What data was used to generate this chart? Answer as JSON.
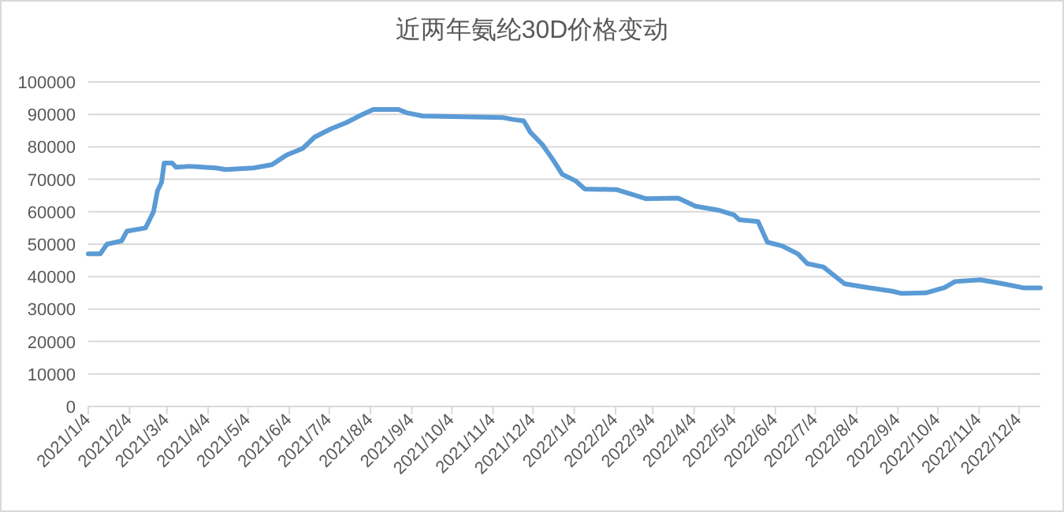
{
  "chart_data": {
    "type": "line",
    "title": "近两年氨纶30D价格变动",
    "x": [
      "2021-01-04",
      "2021-01-13",
      "2021-01-18",
      "2021-01-29",
      "2021-02-02",
      "2021-02-16",
      "2021-02-22",
      "2021-02-25",
      "2021-02-28",
      "2021-03-02",
      "2021-03-08",
      "2021-03-11",
      "2021-03-21",
      "2021-04-10",
      "2021-04-17",
      "2021-05-08",
      "2021-05-22",
      "2021-06-02",
      "2021-06-14",
      "2021-06-23",
      "2021-07-05",
      "2021-07-17",
      "2021-07-29",
      "2021-08-06",
      "2021-08-25",
      "2021-08-31",
      "2021-09-12",
      "2021-11-12",
      "2021-11-18",
      "2021-11-27",
      "2021-12-02",
      "2021-12-11",
      "2021-12-19",
      "2021-12-26",
      "2022-01-05",
      "2022-01-12",
      "2022-02-05",
      "2022-02-19",
      "2022-02-27",
      "2022-03-23",
      "2022-04-05",
      "2022-04-22",
      "2022-05-04",
      "2022-05-08",
      "2022-05-22",
      "2022-05-29",
      "2022-06-09",
      "2022-06-21",
      "2022-06-28",
      "2022-07-10",
      "2022-07-26",
      "2022-08-11",
      "2022-08-31",
      "2022-09-07",
      "2022-09-25",
      "2022-10-09",
      "2022-10-17",
      "2022-11-05",
      "2022-11-22",
      "2022-12-08",
      "2022-12-20"
    ],
    "series": [
      {
        "color": "#5b9bd5",
        "values": [
          47000,
          47000,
          50000,
          51000,
          54000,
          55000,
          60000,
          66500,
          69000,
          75000,
          75000,
          73700,
          74000,
          73500,
          73000,
          73500,
          74500,
          77500,
          79500,
          83000,
          85500,
          87500,
          90000,
          91500,
          91500,
          90500,
          89500,
          89000,
          88500,
          88000,
          84500,
          80700,
          76000,
          71500,
          69500,
          67000,
          66800,
          65000,
          64000,
          64200,
          61700,
          60500,
          59000,
          57500,
          57000,
          50600,
          49500,
          47000,
          44000,
          43000,
          37800,
          36700,
          35500,
          34800,
          35000,
          36600,
          38500,
          39000,
          37800,
          36500,
          36500
        ]
      }
    ],
    "xlim": [
      "2021-01-04",
      "2022-12-20"
    ],
    "xticks": [
      {
        "value": "2021-01-04",
        "label": "2021/1/4"
      },
      {
        "value": "2021-02-04",
        "label": "2021/2/4"
      },
      {
        "value": "2021-03-04",
        "label": "2021/3/4"
      },
      {
        "value": "2021-04-04",
        "label": "2021/4/4"
      },
      {
        "value": "2021-05-04",
        "label": "2021/5/4"
      },
      {
        "value": "2021-06-04",
        "label": "2021/6/4"
      },
      {
        "value": "2021-07-04",
        "label": "2021/7/4"
      },
      {
        "value": "2021-08-04",
        "label": "2021/8/4"
      },
      {
        "value": "2021-09-04",
        "label": "2021/9/4"
      },
      {
        "value": "2021-10-04",
        "label": "2021/10/4"
      },
      {
        "value": "2021-11-04",
        "label": "2021/11/4"
      },
      {
        "value": "2021-12-04",
        "label": "2021/12/4"
      },
      {
        "value": "2022-01-04",
        "label": "2022/1/4"
      },
      {
        "value": "2022-02-04",
        "label": "2022/2/4"
      },
      {
        "value": "2022-03-04",
        "label": "2022/3/4"
      },
      {
        "value": "2022-04-04",
        "label": "2022/4/4"
      },
      {
        "value": "2022-05-04",
        "label": "2022/5/4"
      },
      {
        "value": "2022-06-04",
        "label": "2022/6/4"
      },
      {
        "value": "2022-07-04",
        "label": "2022/7/4"
      },
      {
        "value": "2022-08-04",
        "label": "2022/8/4"
      },
      {
        "value": "2022-09-04",
        "label": "2022/9/4"
      },
      {
        "value": "2022-10-04",
        "label": "2022/10/4"
      },
      {
        "value": "2022-11-04",
        "label": "2022/11/4"
      },
      {
        "value": "2022-12-04",
        "label": "2022/12/4"
      }
    ],
    "ylim": [
      0,
      100000
    ],
    "yticks": [
      0,
      10000,
      20000,
      30000,
      40000,
      50000,
      60000,
      70000,
      80000,
      90000,
      100000
    ],
    "grid": "y",
    "marker": "none",
    "line_style": "solid"
  }
}
